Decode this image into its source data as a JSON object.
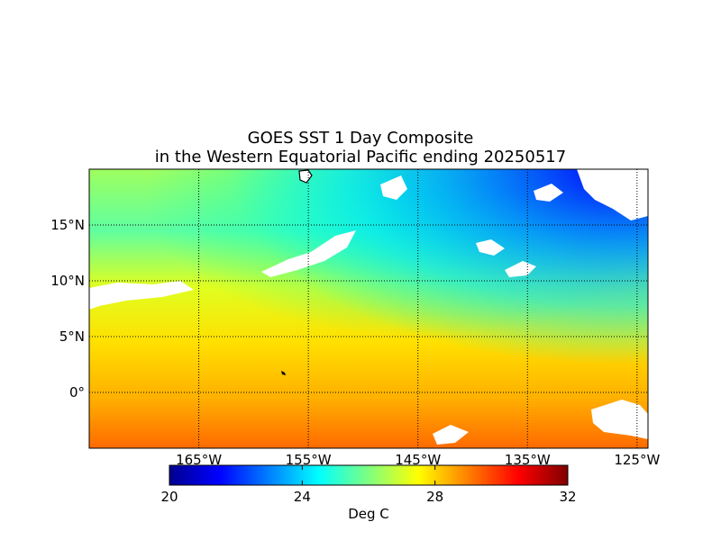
{
  "title": {
    "line1": "GOES SST 1 Day Composite",
    "line2": "in the Western Equatorial Pacific ending 20250517"
  },
  "map": {
    "lon_range": [
      -175,
      -124
    ],
    "lat_range": [
      -5,
      20
    ],
    "lon_ticks": [
      {
        "value": -165,
        "label": "165°W"
      },
      {
        "value": -155,
        "label": "155°W"
      },
      {
        "value": -145,
        "label": "145°W"
      },
      {
        "value": -135,
        "label": "135°W"
      },
      {
        "value": -125,
        "label": "125°W"
      }
    ],
    "lat_ticks": [
      {
        "value": 15,
        "label": "15°N"
      },
      {
        "value": 10,
        "label": "10°N"
      },
      {
        "value": 5,
        "label": "5°N"
      },
      {
        "value": 0,
        "label": "0°"
      }
    ],
    "grid": "dotted"
  },
  "colorbar": {
    "min": 20,
    "max": 32,
    "ticks": [
      {
        "value": 20,
        "label": "20"
      },
      {
        "value": 24,
        "label": "24"
      },
      {
        "value": 28,
        "label": "28"
      },
      {
        "value": 32,
        "label": "32"
      }
    ],
    "label": "Deg C",
    "colormap": "jet"
  },
  "colors": {
    "cold": "#00008f",
    "mid": "#00ffff",
    "warm": "#ffff00",
    "hot": "#ff0000",
    "land": "#ffffff"
  }
}
